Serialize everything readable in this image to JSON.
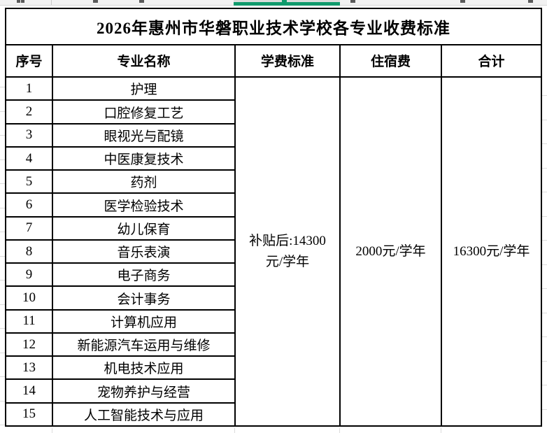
{
  "spreadsheet": {
    "strip_bg": "#f2f2f2",
    "selected_column_color": "#0f9b6c",
    "selected_column_tint": "#dadedb"
  },
  "table": {
    "title": "2026年惠州市华磐职业技术学校各专业收费标准",
    "columns": [
      "序号",
      "专业名称",
      "学费标准",
      "住宿费",
      "合计"
    ],
    "rows": [
      {
        "no": "1",
        "major": "护理"
      },
      {
        "no": "2",
        "major": "口腔修复工艺"
      },
      {
        "no": "3",
        "major": "眼视光与配镜"
      },
      {
        "no": "4",
        "major": "中医康复技术"
      },
      {
        "no": "5",
        "major": "药剂"
      },
      {
        "no": "6",
        "major": "医学检验技术"
      },
      {
        "no": "7",
        "major": "幼儿保育"
      },
      {
        "no": "8",
        "major": "音乐表演"
      },
      {
        "no": "9",
        "major": "电子商务"
      },
      {
        "no": "10",
        "major": "会计事务"
      },
      {
        "no": "11",
        "major": "计算机应用"
      },
      {
        "no": "12",
        "major": "新能源汽车运用与维修"
      },
      {
        "no": "13",
        "major": "机电技术应用"
      },
      {
        "no": "14",
        "major": "宠物养护与经营"
      },
      {
        "no": "15",
        "major": "人工智能技术与应用"
      }
    ],
    "fees": {
      "tuition_line1": "补贴后:14300",
      "tuition_line2": "元/学年",
      "accommodation": "2000元/学年",
      "total": "16300元/学年"
    }
  }
}
